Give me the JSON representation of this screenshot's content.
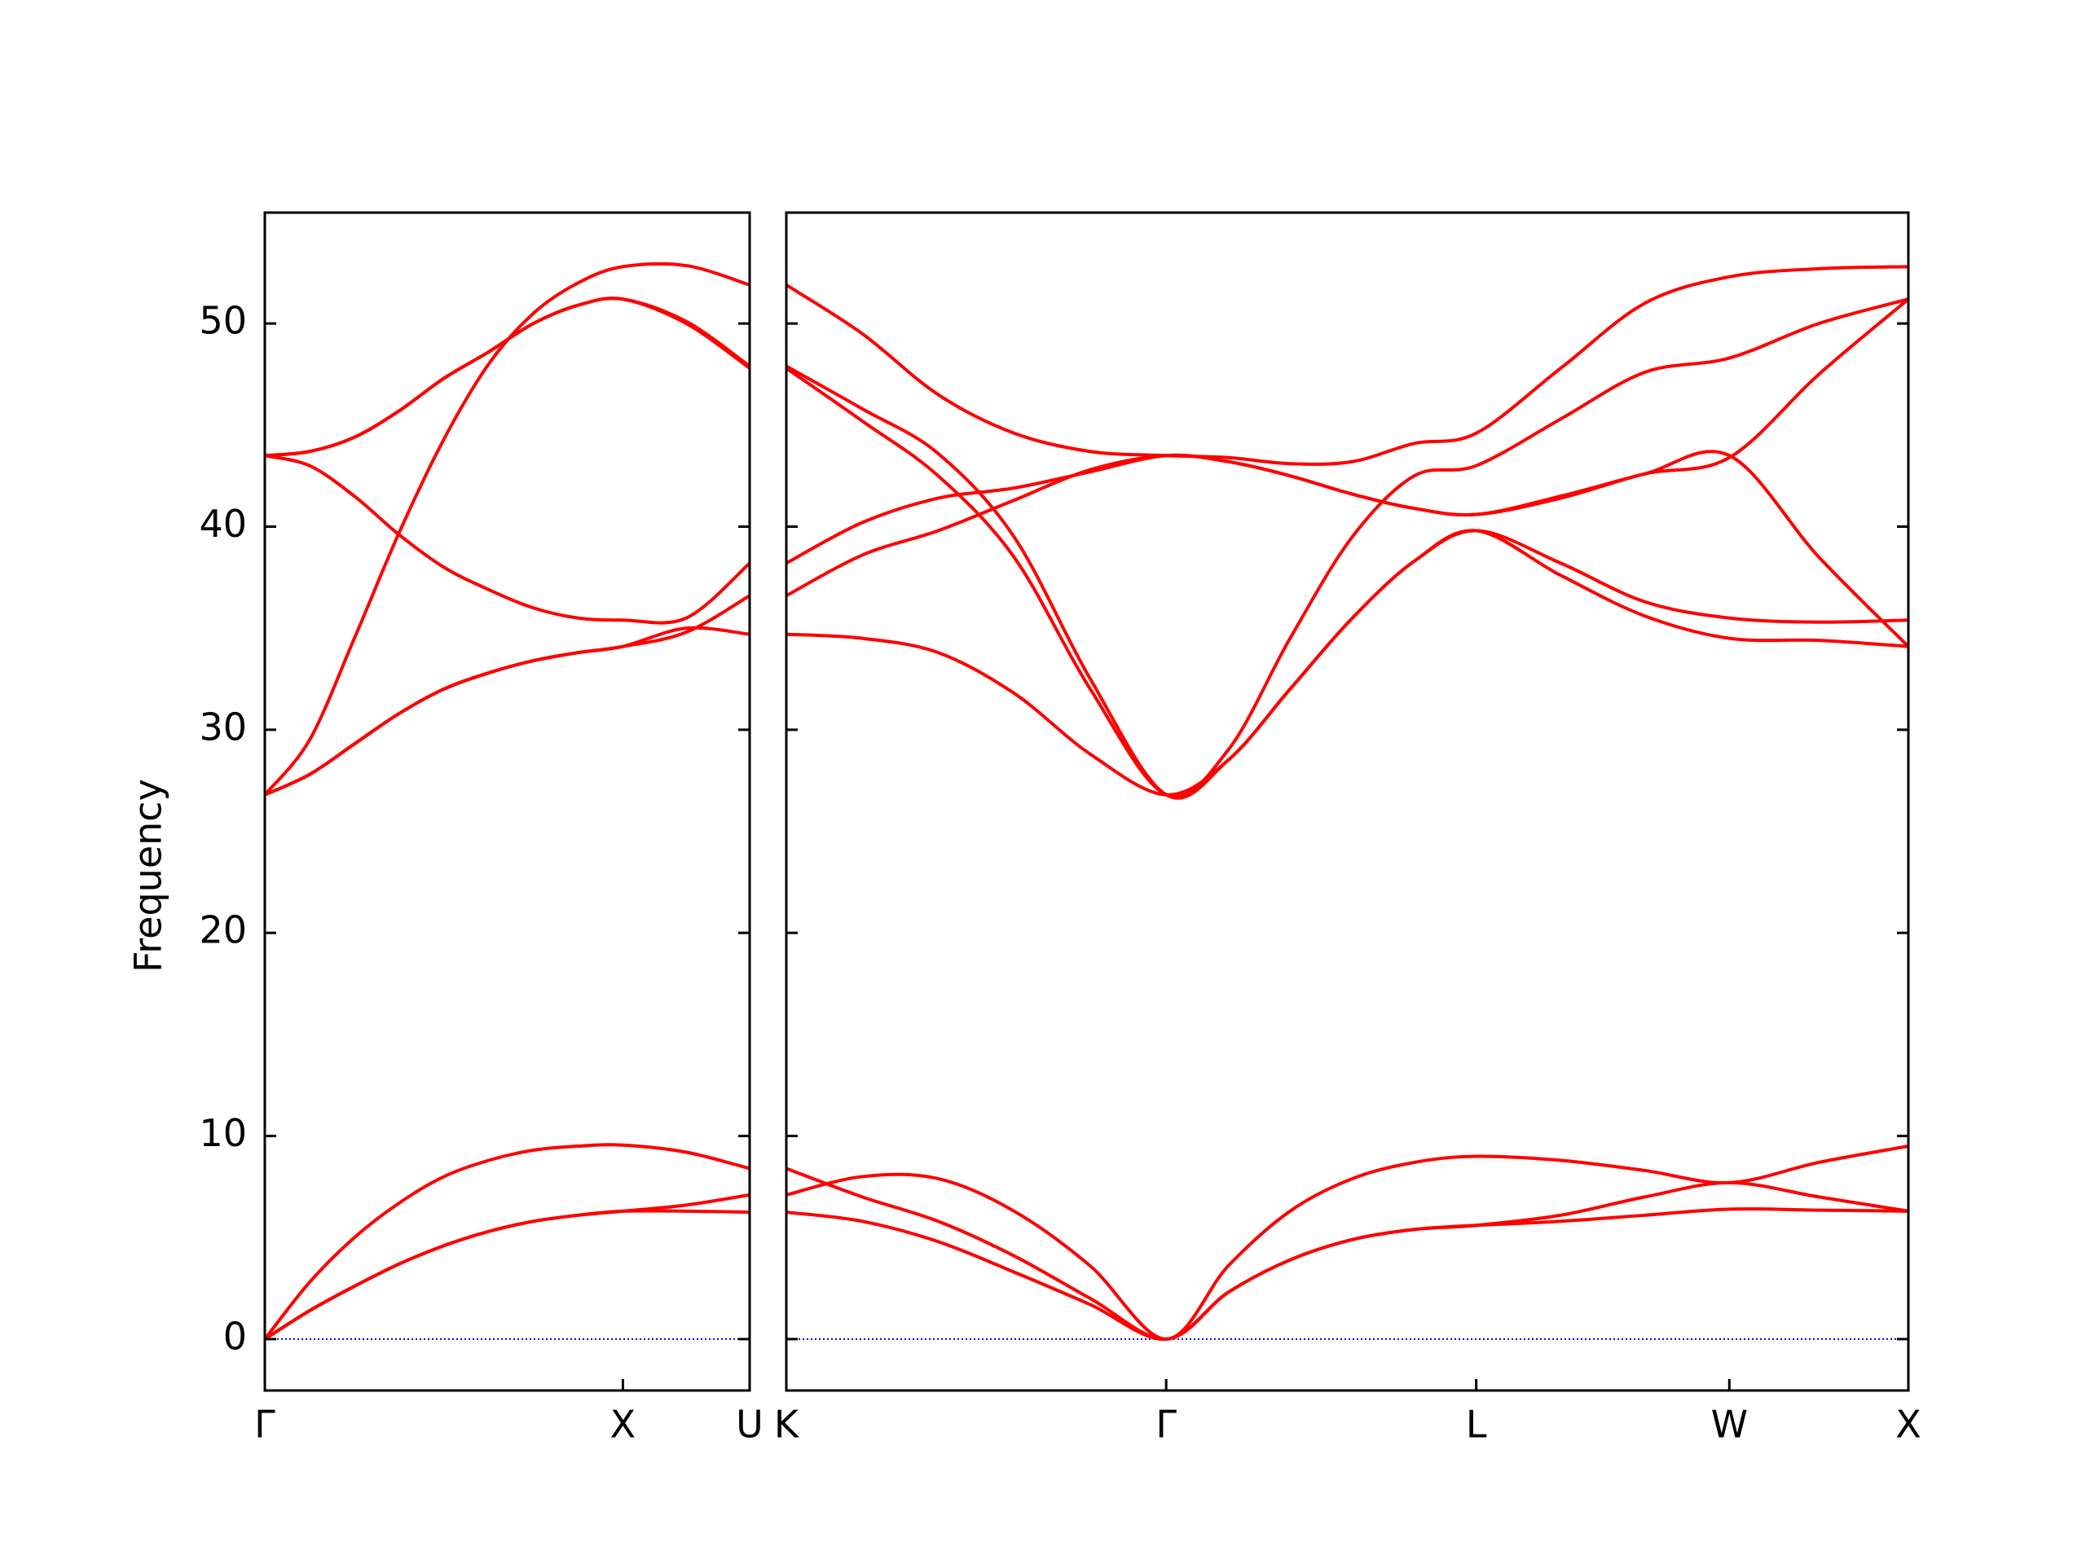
{
  "chart_data": [
    {
      "type": "line",
      "ylabel": "Frequency",
      "ytick_labels": true,
      "x": [
        0,
        0.125,
        0.25,
        0.375,
        0.5,
        0.625,
        0.75,
        0.875,
        1.0,
        1.177,
        1.354
      ],
      "xlim": [
        0,
        1.354
      ],
      "xticks": [
        {
          "value": 0,
          "label": "Γ"
        },
        {
          "value": 1.0,
          "label": "X"
        },
        {
          "value": 1.354,
          "label": "U"
        }
      ],
      "ylim": [
        -2.53,
        55.46
      ],
      "yticks": [
        0,
        10,
        20,
        30,
        40,
        50
      ],
      "hline": 0,
      "hline_color": "#0000cc",
      "series": [
        {
          "color": "#ff0000",
          "values": [
            0,
            1.4,
            2.6,
            3.7,
            4.6,
            5.3,
            5.8,
            6.1,
            6.3,
            6.3,
            6.25
          ]
        },
        {
          "color": "#ff0000",
          "values": [
            0,
            1.4,
            2.6,
            3.7,
            4.6,
            5.3,
            5.8,
            6.1,
            6.3,
            6.6,
            7.1
          ]
        },
        {
          "color": "#ff0000",
          "values": [
            0,
            2.8,
            5.0,
            6.7,
            8.0,
            8.8,
            9.3,
            9.5,
            9.55,
            9.2,
            8.4
          ]
        },
        {
          "color": "#ff0000",
          "values": [
            26.8,
            27.8,
            29.3,
            30.8,
            32.0,
            32.8,
            33.4,
            33.8,
            34.1,
            35.0,
            34.7
          ]
        },
        {
          "color": "#ff0000",
          "values": [
            26.8,
            27.8,
            29.3,
            30.8,
            32.0,
            32.8,
            33.4,
            33.8,
            34.1,
            34.8,
            36.6
          ]
        },
        {
          "color": "#ff0000",
          "values": [
            43.5,
            43.0,
            41.5,
            39.6,
            38.0,
            36.9,
            36.0,
            35.5,
            35.4,
            35.5,
            38.2
          ]
        },
        {
          "color": "#ff0000",
          "values": [
            26.8,
            29.5,
            34.5,
            39.7,
            44.3,
            48.0,
            50.5,
            52.0,
            52.8,
            52.85,
            51.9
          ]
        },
        {
          "color": "#ff0000",
          "values": [
            43.5,
            43.7,
            44.4,
            45.7,
            47.3,
            48.6,
            50.0,
            50.9,
            51.2,
            50.0,
            47.8
          ]
        },
        {
          "color": "#ff0000",
          "values": [
            43.5,
            43.7,
            44.4,
            45.7,
            47.3,
            48.6,
            50.0,
            50.9,
            51.2,
            50.1,
            47.9
          ]
        }
      ]
    },
    {
      "type": "line",
      "ytick_labels": false,
      "x": [
        0,
        0.212,
        0.424,
        0.636,
        0.849,
        1.061,
        1.234,
        1.407,
        1.581,
        1.754,
        1.927,
        2.163,
        2.398,
        2.634,
        2.884,
        3.134
      ],
      "xlim": [
        0,
        3.134
      ],
      "xticks": [
        {
          "value": 0,
          "label": "K"
        },
        {
          "value": 1.061,
          "label": "Γ"
        },
        {
          "value": 1.927,
          "label": "L"
        },
        {
          "value": 2.634,
          "label": "W"
        },
        {
          "value": 3.134,
          "label": "X"
        }
      ],
      "ylim": [
        -2.53,
        55.46
      ],
      "yticks": [
        0,
        10,
        20,
        30,
        40,
        50
      ],
      "hline": 0,
      "hline_color": "#0000cc",
      "series": [
        {
          "color": "#ff0000",
          "values": [
            6.25,
            5.8,
            4.8,
            3.3,
            1.7,
            0,
            2.3,
            3.9,
            4.9,
            5.4,
            5.6,
            5.8,
            6.1,
            6.4,
            6.35,
            6.3
          ]
        },
        {
          "color": "#ff0000",
          "values": [
            8.4,
            7.0,
            5.8,
            4.1,
            2.0,
            0,
            2.3,
            3.9,
            4.9,
            5.4,
            5.6,
            6.1,
            7.0,
            7.7,
            7.0,
            6.3
          ]
        },
        {
          "color": "#ff0000",
          "values": [
            7.1,
            8.0,
            7.9,
            6.3,
            3.6,
            0,
            3.6,
            6.3,
            7.9,
            8.7,
            9.0,
            8.8,
            8.3,
            7.7,
            8.7,
            9.5
          ]
        },
        {
          "color": "#ff0000",
          "values": [
            34.7,
            34.5,
            33.8,
            31.8,
            28.8,
            26.8,
            28.5,
            32.0,
            35.5,
            38.3,
            39.8,
            37.6,
            35.6,
            34.5,
            34.4,
            34.1
          ]
        },
        {
          "color": "#ff0000",
          "values": [
            36.6,
            38.6,
            39.8,
            41.3,
            42.8,
            43.5,
            43.2,
            42.5,
            41.6,
            40.9,
            40.6,
            41.5,
            42.6,
            43.5,
            38.5,
            34.1
          ]
        },
        {
          "color": "#ff0000",
          "values": [
            38.2,
            40.2,
            41.4,
            41.9,
            42.7,
            43.5,
            43.2,
            42.5,
            41.6,
            40.9,
            40.6,
            41.4,
            42.6,
            43.4,
            47.5,
            51.2
          ]
        },
        {
          "color": "#ff0000",
          "values": [
            47.8,
            45.2,
            42.5,
            38.5,
            32.0,
            26.8,
            29.0,
            34.5,
            39.5,
            42.5,
            43.0,
            45.3,
            47.6,
            48.3,
            50.0,
            51.2
          ]
        },
        {
          "color": "#ff0000",
          "values": [
            47.9,
            45.8,
            43.6,
            39.5,
            32.5,
            26.8,
            28.5,
            32.0,
            35.5,
            38.3,
            39.8,
            38.2,
            36.3,
            35.5,
            35.3,
            35.4
          ]
        },
        {
          "color": "#ff0000",
          "values": [
            51.9,
            49.5,
            46.5,
            44.6,
            43.7,
            43.5,
            43.4,
            43.1,
            43.2,
            44.1,
            44.6,
            47.8,
            51.0,
            52.3,
            52.7,
            52.8
          ]
        }
      ]
    }
  ]
}
